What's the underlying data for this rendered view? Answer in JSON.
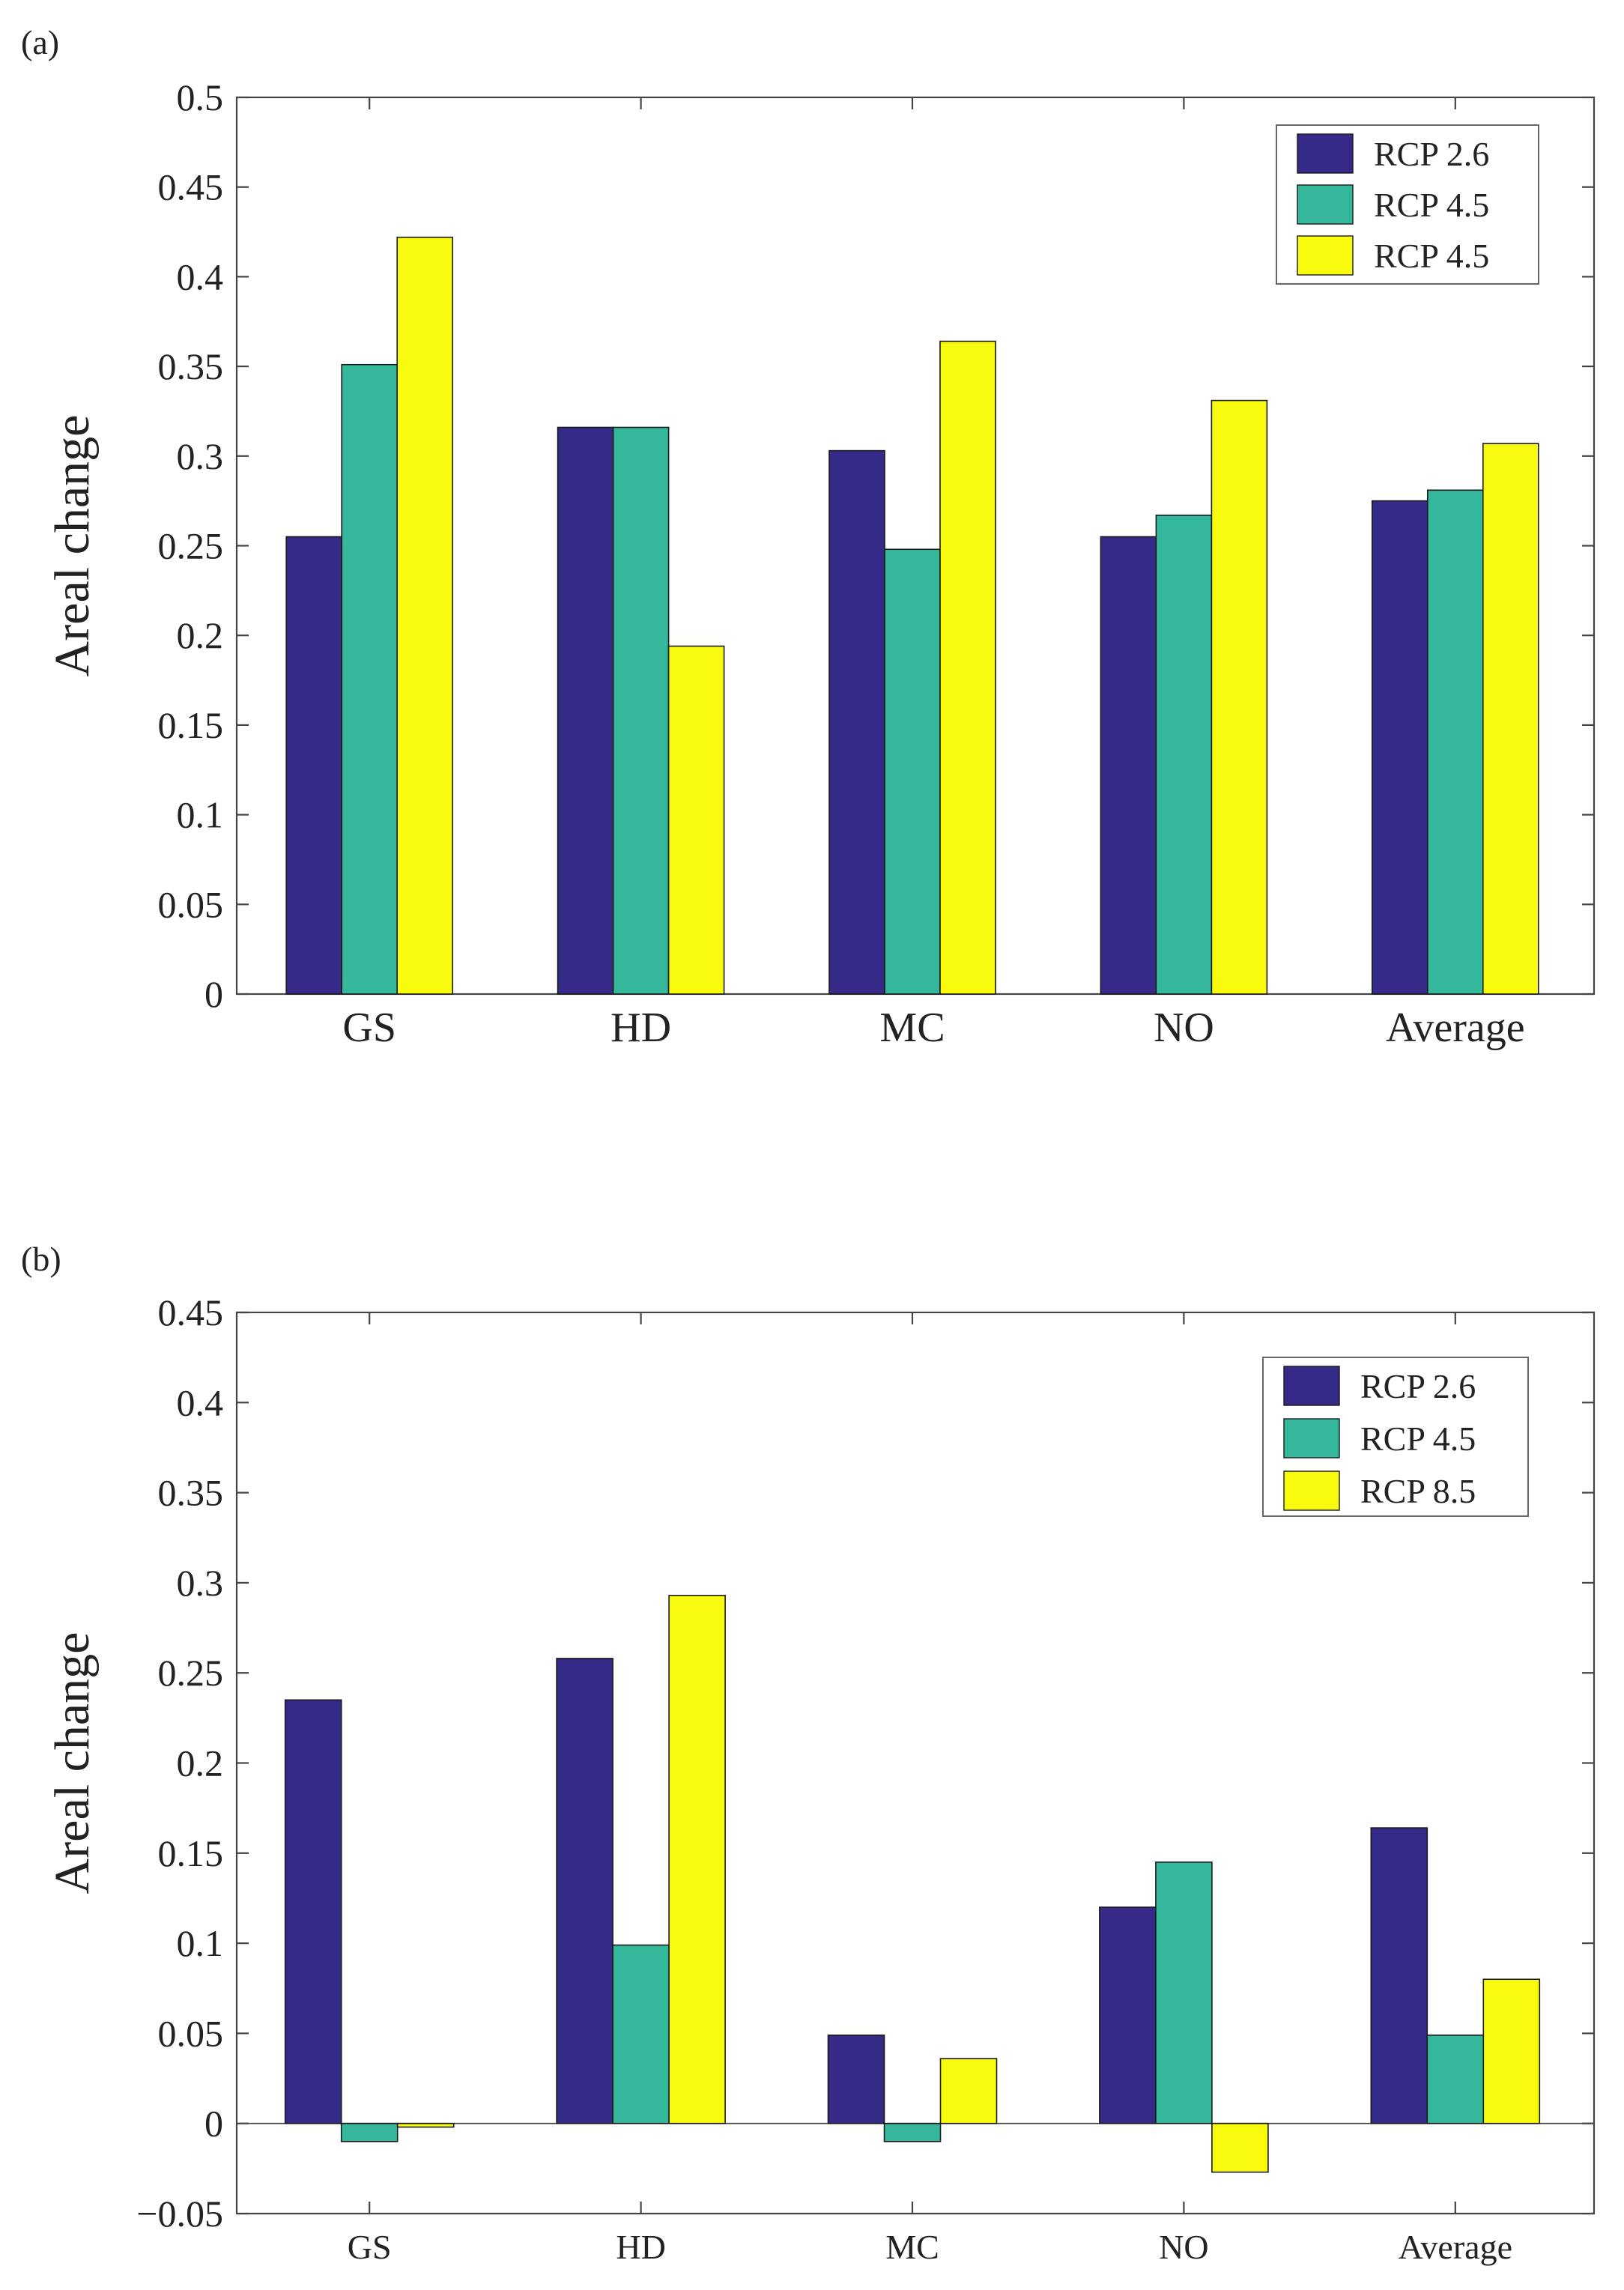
{
  "chart_data": [
    {
      "type": "bar",
      "panel_label": "(a)",
      "ylabel": "Areal change",
      "xlabel": "",
      "categories": [
        "GS",
        "HD",
        "MC",
        "NO",
        "Average"
      ],
      "ylim": [
        0,
        0.5
      ],
      "yticks": [
        "0",
        "0.05",
        "0.1",
        "0.15",
        "0.2",
        "0.25",
        "0.3",
        "0.35",
        "0.4",
        "0.45",
        "0.5"
      ],
      "legend_position": "top-right",
      "series": [
        {
          "name": "RCP 2.6",
          "color": "#352a87",
          "values": [
            0.255,
            0.316,
            0.303,
            0.255,
            0.275
          ]
        },
        {
          "name": "RCP 4.5",
          "color": "#35b79b",
          "values": [
            0.351,
            0.316,
            0.248,
            0.267,
            0.281
          ]
        },
        {
          "name": "RCP 4.5",
          "color": "#f9fb0e",
          "values": [
            0.422,
            0.194,
            0.364,
            0.331,
            0.307
          ]
        }
      ]
    },
    {
      "type": "bar",
      "panel_label": "(b)",
      "ylabel": "Areal change",
      "xlabel": "",
      "categories": [
        "GS",
        "HD",
        "MC",
        "NO",
        "Average"
      ],
      "ylim": [
        -0.05,
        0.45
      ],
      "yticks": [
        "−0.05",
        "0",
        "0.05",
        "0.1",
        "0.15",
        "0.2",
        "0.25",
        "0.3",
        "0.35",
        "0.4",
        "0.45"
      ],
      "legend_position": "top-right",
      "series": [
        {
          "name": "RCP 2.6",
          "color": "#352a87",
          "values": [
            0.235,
            0.258,
            0.049,
            0.12,
            0.164
          ]
        },
        {
          "name": "RCP 4.5",
          "color": "#35b79b",
          "values": [
            -0.01,
            0.099,
            -0.01,
            0.145,
            0.049
          ]
        },
        {
          "name": "RCP 8.5",
          "color": "#f9fb0e",
          "values": [
            -0.002,
            0.293,
            0.036,
            -0.027,
            0.08
          ]
        }
      ]
    }
  ]
}
